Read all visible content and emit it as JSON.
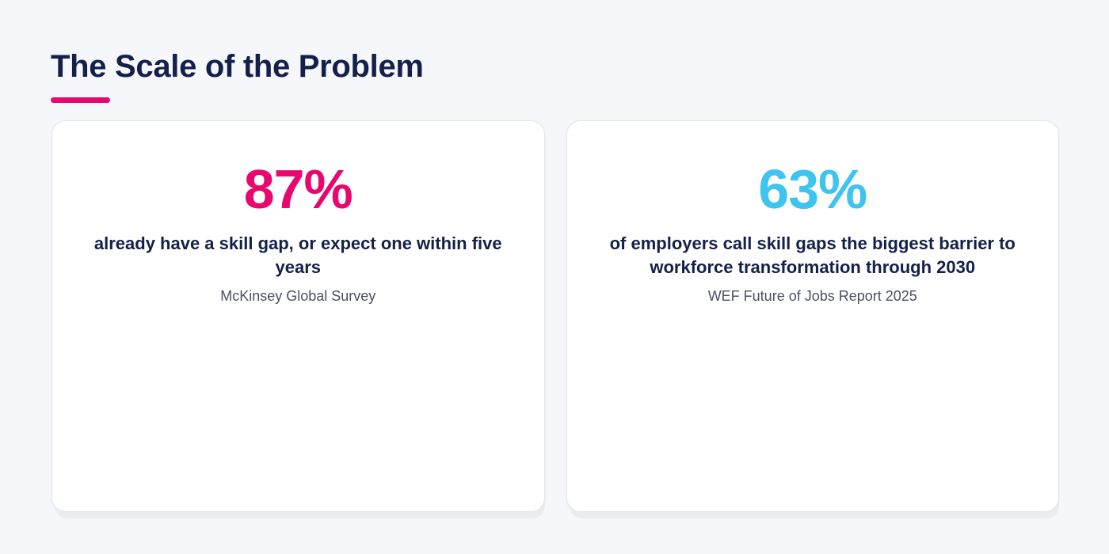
{
  "header": {
    "title": "The Scale of the Problem",
    "accent_color": "#e8086d"
  },
  "stats": [
    {
      "value": "87%",
      "color": "#e8086d",
      "description": "already have a skill gap, or expect one within five years",
      "source": "McKinsey Global Survey"
    },
    {
      "value": "63%",
      "color": "#3ec4ee",
      "description": "of employers call skill gaps the biggest barrier to workforce transformation through 2030",
      "source": "WEF Future of Jobs Report 2025"
    }
  ]
}
